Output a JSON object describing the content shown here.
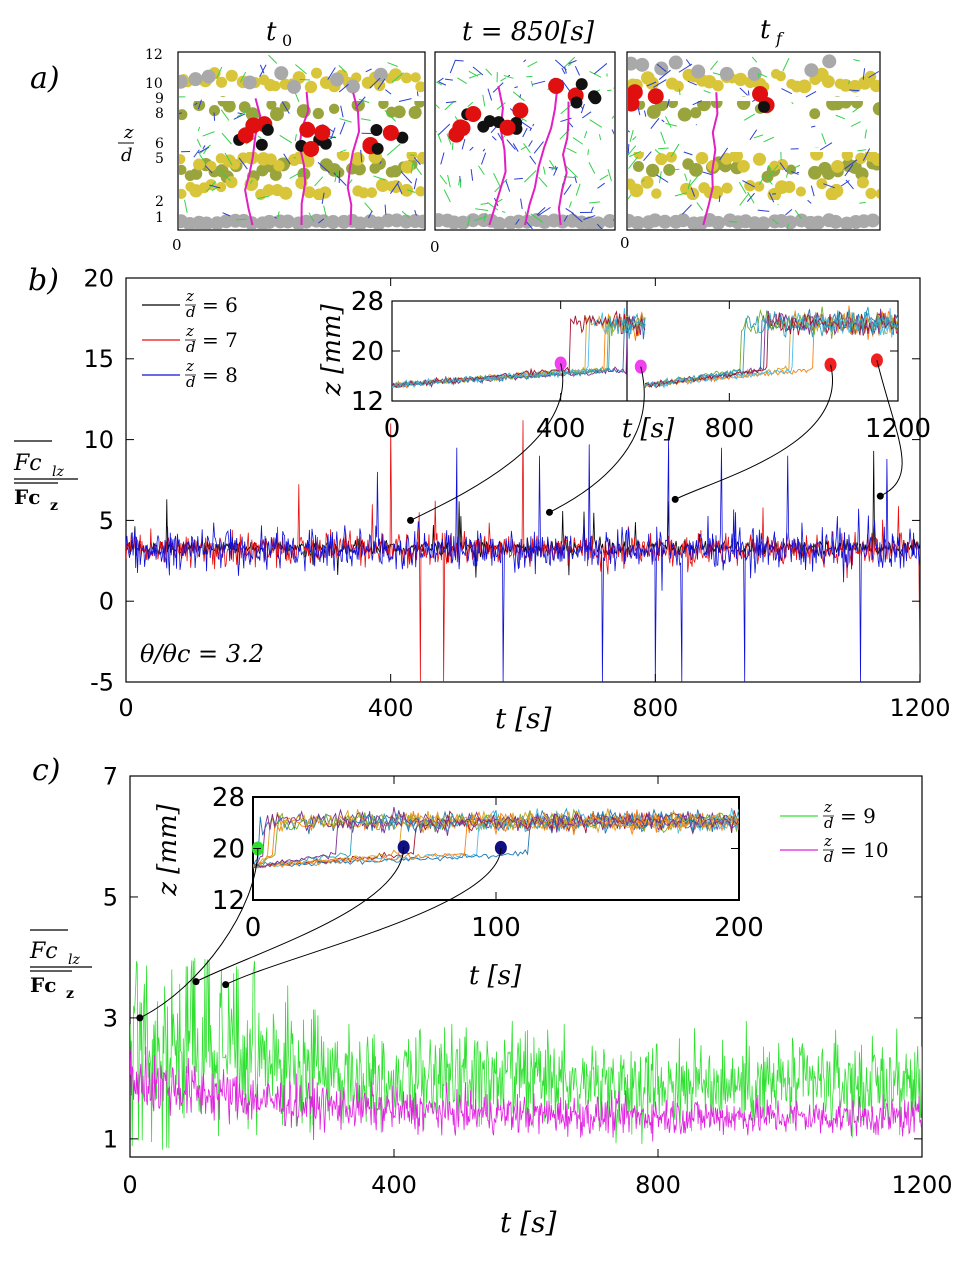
{
  "panel_a": {
    "tag": "a)",
    "titles": [
      "t",
      "t = 850[s]",
      "t"
    ],
    "title_subs": [
      "0",
      "",
      "f"
    ],
    "ylabel_num": "z",
    "ylabel_den": "d",
    "yticks": [
      "12",
      "10",
      "9",
      "8",
      "6",
      "5",
      "2",
      "1"
    ],
    "origin": "0",
    "colors": {
      "gray": "#a9a9a9",
      "yellow": "#d8c53a",
      "olive": "#9aa43c",
      "red": "#e01010",
      "black": "#111111",
      "magenta": "#e020c0",
      "blue": "#2a3fd0",
      "green": "#35d04a"
    }
  },
  "chart_data": [
    {
      "id": "b",
      "type": "line",
      "tag": "b)",
      "xlabel": "t [s]",
      "ylabel_num": "Fc",
      "ylabel_sub": "lz",
      "ylabel_den": "Fc",
      "ylabel_den_sub": "z",
      "annotation": "θ/θc = 3.2",
      "xlim": [
        0,
        1200
      ],
      "ylim": [
        -5,
        20
      ],
      "xticks": [
        0,
        400,
        800,
        1200
      ],
      "yticks": [
        -5,
        0,
        5,
        10,
        15,
        20
      ],
      "legend": {
        "placement": "top-left",
        "entries": [
          {
            "label": "z/d = 6",
            "num": "z",
            "den": "d",
            "value": "6",
            "color": "#000000"
          },
          {
            "label": "z/d = 7",
            "num": "z",
            "den": "d",
            "value": "7",
            "color": "#e81010"
          },
          {
            "label": "z/d = 8",
            "num": "z",
            "den": "d",
            "value": "8",
            "color": "#1010d8"
          }
        ]
      },
      "series": [
        {
          "label": "z/d = 6",
          "color": "#000000",
          "baseline": 3.3,
          "noise": 0.35,
          "spikes": [
            [
              1130,
              9.3
            ],
            [
              820,
              6.2
            ]
          ]
        },
        {
          "label": "z/d = 7",
          "color": "#e81010",
          "baseline": 3.2,
          "noise": 0.7,
          "spikes": [
            [
              400,
              11.0
            ],
            [
              600,
              11.2
            ],
            [
              480,
              6.5
            ],
            [
              445,
              -5.0
            ],
            [
              480,
              -5.0
            ],
            [
              1200,
              -5.0
            ]
          ]
        },
        {
          "label": "z/d = 8",
          "color": "#1010d8",
          "baseline": 3.2,
          "noise": 0.9,
          "spikes": [
            [
              380,
              8.0
            ],
            [
              500,
              9.5
            ],
            [
              625,
              9.0
            ],
            [
              700,
              9.7
            ],
            [
              820,
              10.0
            ],
            [
              900,
              9.5
            ],
            [
              1000,
              9.0
            ],
            [
              1150,
              8.8
            ],
            [
              570,
              -5.0
            ],
            [
              720,
              -5.0
            ],
            [
              800,
              -5.0
            ],
            [
              840,
              -5.0
            ],
            [
              935,
              -5.0
            ],
            [
              1110,
              -5.0
            ]
          ]
        }
      ],
      "markers": [
        [
          430,
          5.0
        ],
        [
          640,
          5.5
        ],
        [
          830,
          6.3
        ],
        [
          1140,
          6.5
        ]
      ],
      "inset": {
        "xlabel": "t [s]",
        "ylabel": "z [mm]",
        "xlim": [
          0,
          1200
        ],
        "ylim": [
          12,
          28
        ],
        "xticks": [
          0,
          400,
          800,
          1200
        ],
        "yticks": [
          12,
          20,
          28
        ],
        "divider_x": 600,
        "highlights": [
          {
            "x": 400,
            "y": 18.0,
            "color": "#f040f0"
          },
          {
            "x": 590,
            "y": 17.5,
            "color": "#f040f0"
          },
          {
            "x": 1040,
            "y": 17.8,
            "color": "#f02020"
          },
          {
            "x": 1150,
            "y": 18.5,
            "color": "#f02020"
          }
        ]
      }
    },
    {
      "id": "c",
      "type": "line",
      "tag": "c)",
      "xlabel": "t [s]",
      "ylabel_num": "Fc",
      "ylabel_sub": "lz",
      "ylabel_den": "Fc",
      "ylabel_den_sub": "z",
      "xlim": [
        0,
        1200
      ],
      "ylim": [
        0.7,
        7
      ],
      "xticks": [
        0,
        400,
        800,
        1200
      ],
      "yticks": [
        1,
        3,
        5,
        7
      ],
      "legend": {
        "placement": "top-right",
        "entries": [
          {
            "label": "z/d = 9",
            "num": "z",
            "den": "d",
            "value": "9",
            "color": "#30e030"
          },
          {
            "label": "z/d = 10",
            "num": "z",
            "den": "d",
            "value": "10",
            "color": "#e020e0"
          }
        ]
      },
      "series": [
        {
          "label": "z/d = 9",
          "color": "#30e030",
          "start": 2.6,
          "end": 1.9,
          "noise": 0.5
        },
        {
          "label": "z/d = 10",
          "color": "#e020e0",
          "start": 2.0,
          "end": 1.35,
          "noise": 0.22
        }
      ],
      "markers": [
        [
          15,
          3.0
        ],
        [
          100,
          3.6
        ],
        [
          145,
          3.55
        ]
      ],
      "inset": {
        "xlabel": "t [s]",
        "ylabel": "z [mm]",
        "xlim": [
          0,
          200
        ],
        "ylim": [
          12,
          28
        ],
        "xticks": [
          0,
          100,
          200
        ],
        "yticks": [
          12,
          20,
          28
        ],
        "highlights": [
          {
            "x": 2,
            "y": 20.0,
            "color": "#30e030"
          },
          {
            "x": 62,
            "y": 20.2,
            "color": "#101080"
          },
          {
            "x": 102,
            "y": 20.1,
            "color": "#101080"
          }
        ]
      }
    }
  ]
}
